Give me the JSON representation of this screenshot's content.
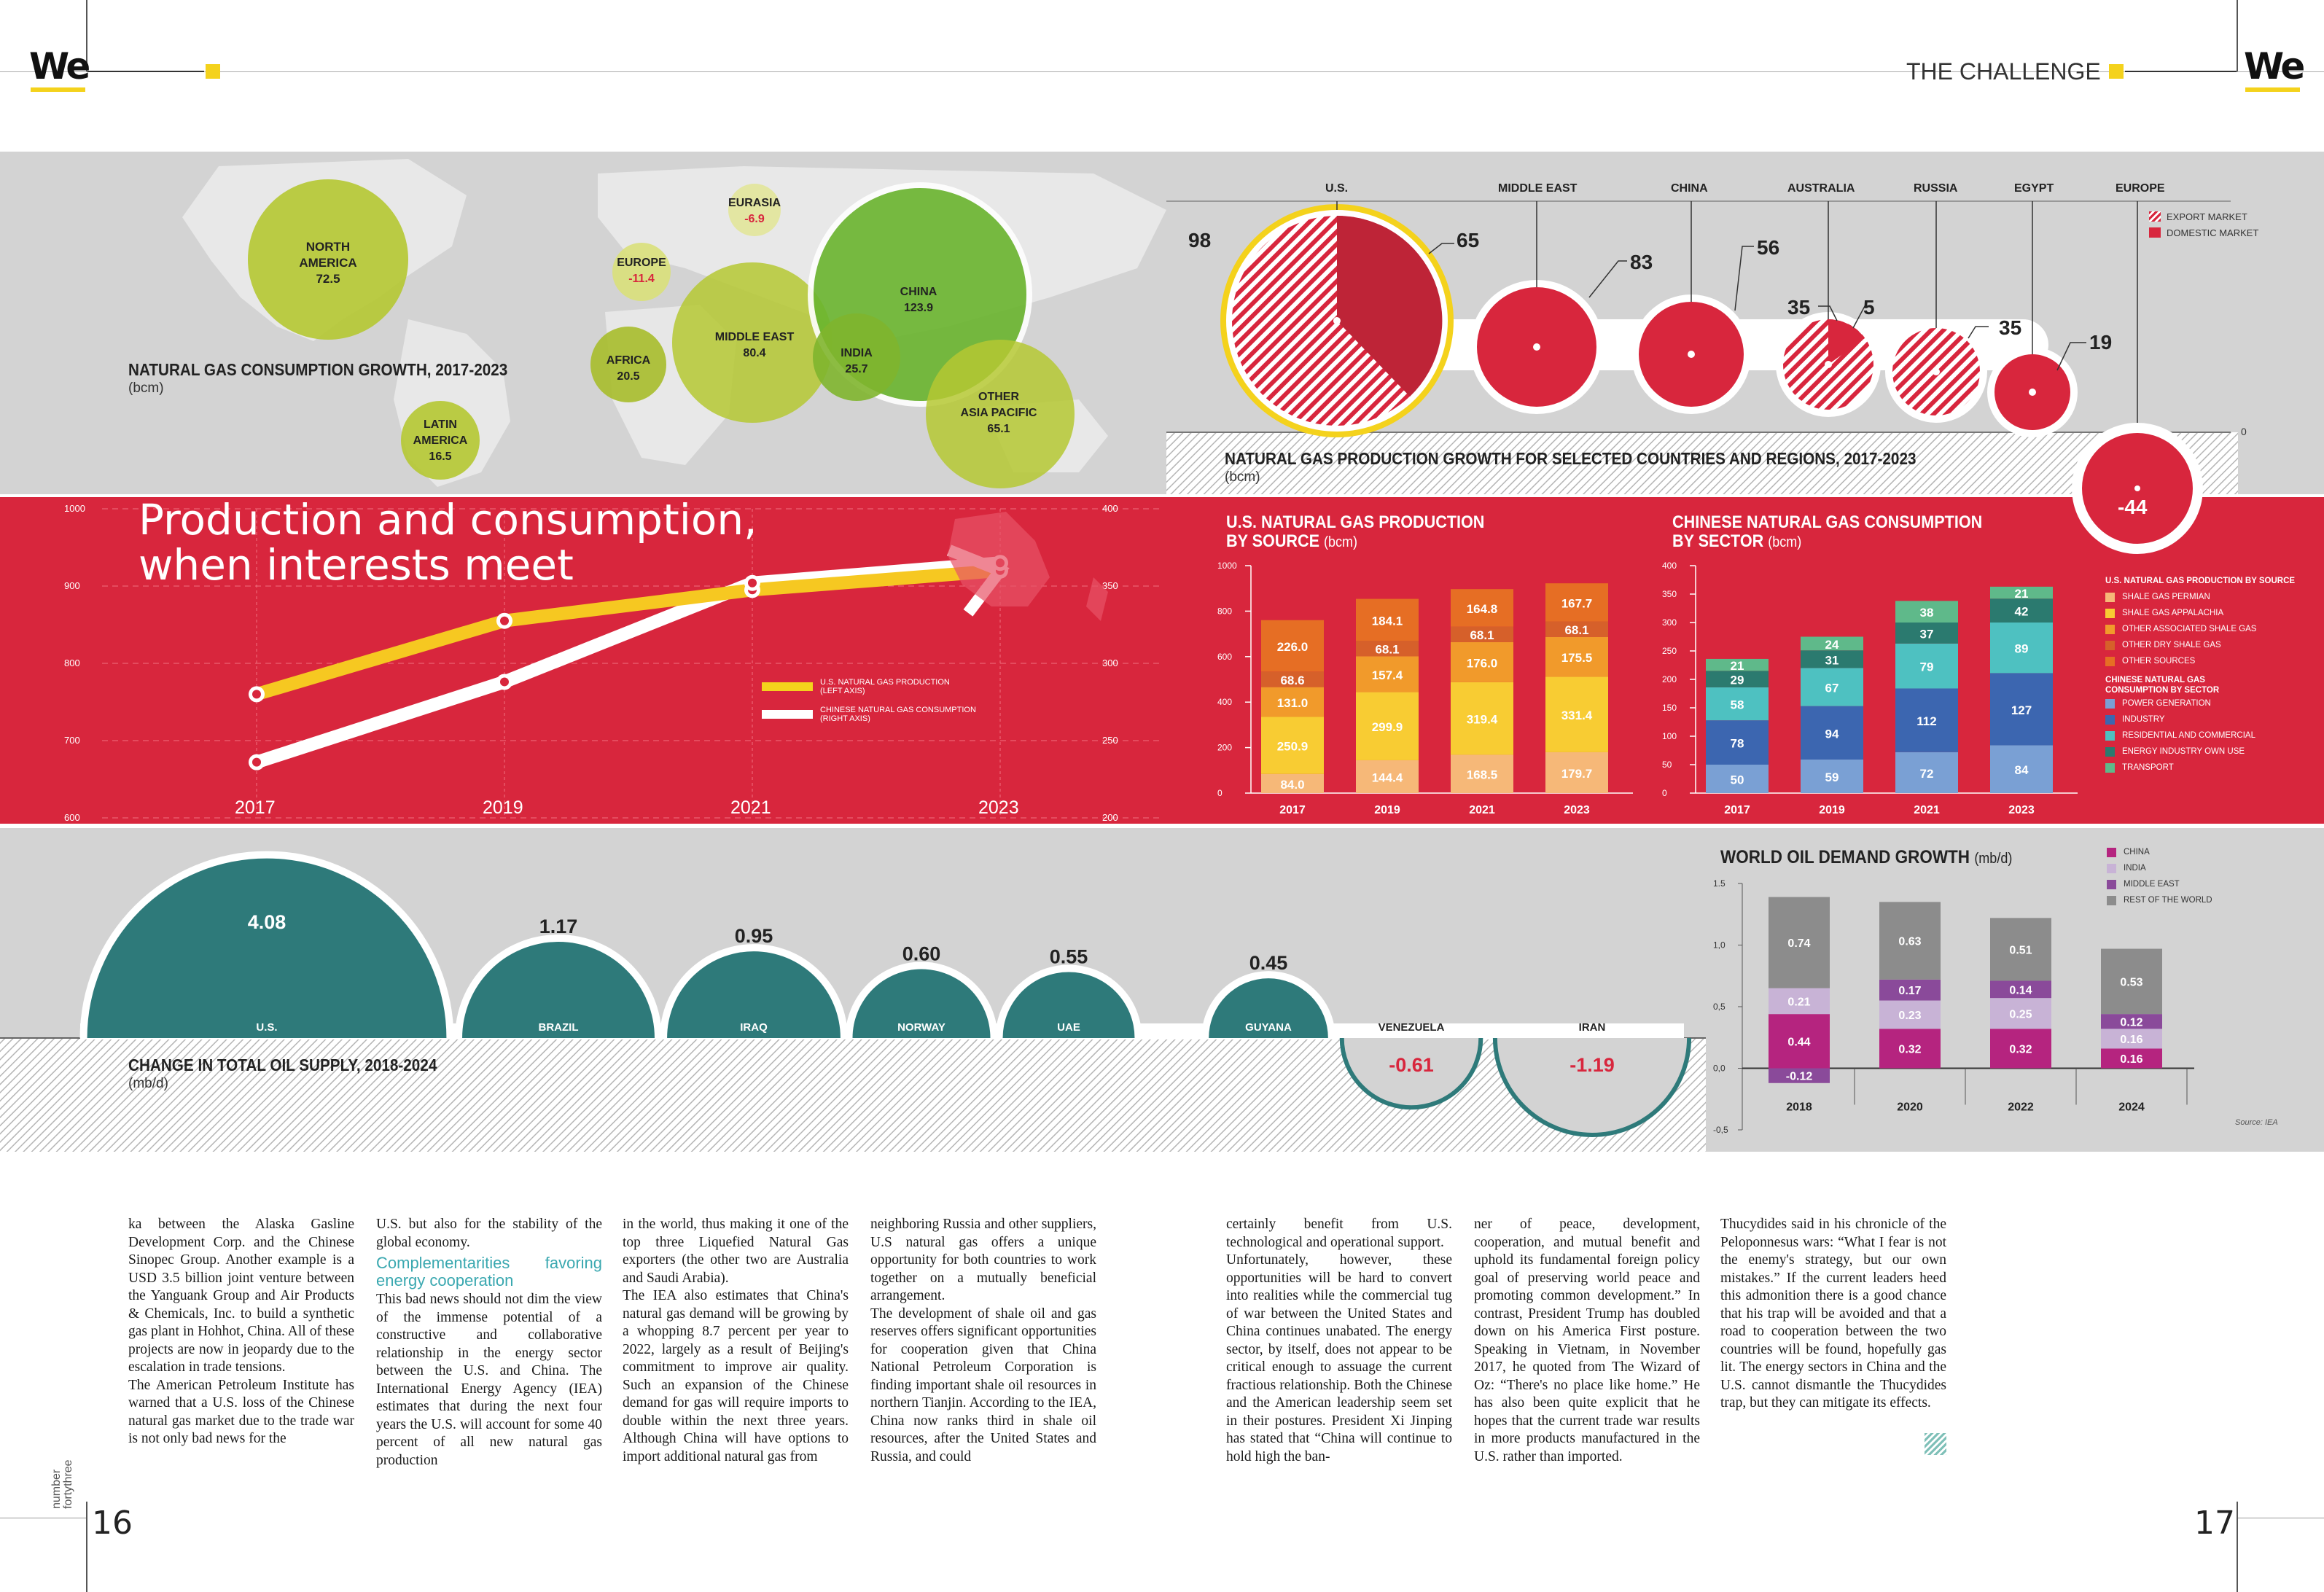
{
  "header": {
    "logo": "We",
    "section": "THE CHALLENGE",
    "page_left": "16",
    "page_right": "17",
    "issue_vertical": "number fortythree"
  },
  "colors": {
    "red": "#d8263d",
    "gray": "#d3d3d3",
    "yellow": "#f4d21c",
    "green": "#b5c832",
    "teal": "#2e7a7a",
    "yellowline": "#f6c821"
  },
  "consumption_map": {
    "title": "NATURAL GAS CONSUMPTION GROWTH, 2017-2023",
    "unit": "(bcm)",
    "bubbles": [
      {
        "name": "NORTH AMERICA",
        "value": "72.5"
      },
      {
        "name": "EUROPE",
        "value": "-11.4"
      },
      {
        "name": "EURASIA",
        "value": "-6.9"
      },
      {
        "name": "AFRICA",
        "value": "20.5"
      },
      {
        "name": "MIDDLE EAST",
        "value": "80.4"
      },
      {
        "name": "INDIA",
        "value": "25.7"
      },
      {
        "name": "CHINA",
        "value": "123.9"
      },
      {
        "name": "OTHER ASIA PACIFIC",
        "value": "65.1"
      },
      {
        "name": "LATIN AMERICA",
        "value": "16.5"
      }
    ]
  },
  "production_growth": {
    "title": "NATURAL GAS PRODUCTION GROWTH FOR SELECTED COUNTRIES AND REGIONS, 2017-2023",
    "unit": "(bcm)",
    "legend": [
      "EXPORT MARKET",
      "DOMESTIC MARKET"
    ],
    "zero_label": "0",
    "countries": [
      {
        "name": "U.S.",
        "export": "98",
        "domestic": "65"
      },
      {
        "name": "MIDDLE EAST",
        "domestic": "83"
      },
      {
        "name": "CHINA",
        "domestic": "56"
      },
      {
        "name": "AUSTRALIA",
        "export": "35",
        "domestic": "5"
      },
      {
        "name": "RUSSIA",
        "export": "35"
      },
      {
        "name": "EGYPT",
        "domestic": "19"
      },
      {
        "name": "EUROPE",
        "domestic": "-44"
      }
    ]
  },
  "line_panel": {
    "title_line1": "Production and consumption,",
    "title_line2": "when interests meet",
    "left_ticks": [
      "1000",
      "900",
      "800",
      "700",
      "600"
    ],
    "right_ticks": [
      "400",
      "350",
      "300",
      "250",
      "200"
    ],
    "years": [
      "2017",
      "2019",
      "2021",
      "2023"
    ],
    "legend": [
      {
        "label": "U.S. NATURAL GAS PRODUCTION",
        "axis": "(LEFT AXIS)"
      },
      {
        "label": "CHINESE NATURAL GAS CONSUMPTION",
        "axis": "(RIGHT AXIS)"
      }
    ]
  },
  "chart_data": [
    {
      "type": "line",
      "title": "Production and consumption, when interests meet",
      "x": [
        "2017",
        "2019",
        "2021",
        "2023"
      ],
      "series": [
        {
          "name": "U.S. NATURAL GAS PRODUCTION (LEFT AXIS)",
          "values": [
            760,
            855,
            895,
            920
          ]
        },
        {
          "name": "CHINESE NATURAL GAS CONSUMPTION (RIGHT AXIS)",
          "values": [
            236,
            288,
            352,
            365
          ]
        }
      ],
      "ylim_left": [
        600,
        1000
      ],
      "ylim_right": [
        200,
        400
      ]
    },
    {
      "type": "bar",
      "title": "U.S. NATURAL GAS PRODUCTION BY SOURCE",
      "unit": "(bcm)",
      "categories": [
        "2017",
        "2019",
        "2021",
        "2023"
      ],
      "ylim": [
        0,
        1000
      ],
      "yticks": [
        "1000",
        "800",
        "600",
        "400",
        "200",
        "0"
      ],
      "series": [
        {
          "name": "SHALE GAS PERMIAN",
          "color": "#f6b878",
          "values": [
            84.0,
            144.4,
            168.5,
            179.7
          ]
        },
        {
          "name": "SHALE GAS APPALACHIA",
          "color": "#f8cc33",
          "values": [
            250.9,
            299.9,
            319.4,
            331.4
          ]
        },
        {
          "name": "OTHER ASSOCIATED SHALE GAS",
          "color": "#f19a2b",
          "values": [
            131.0,
            157.4,
            176.0,
            175.5
          ]
        },
        {
          "name": "OTHER DRY SHALE GAS",
          "color": "#d6602a",
          "values": [
            68.6,
            68.1,
            68.1,
            68.1
          ]
        },
        {
          "name": "OTHER SOURCES",
          "color": "#e66e24",
          "values": [
            226.0,
            184.1,
            164.8,
            167.7
          ]
        }
      ]
    },
    {
      "type": "bar",
      "title": "CHINESE NATURAL GAS CONSUMPTION BY SECTOR",
      "unit": "(bcm)",
      "categories": [
        "2017",
        "2019",
        "2021",
        "2023"
      ],
      "ylim": [
        0,
        400
      ],
      "yticks": [
        "400",
        "350",
        "300",
        "250",
        "200",
        "150",
        "100",
        "50",
        "0"
      ],
      "series": [
        {
          "name": "POWER GENERATION",
          "color": "#7aa0d4",
          "values": [
            50,
            59,
            72,
            84
          ]
        },
        {
          "name": "INDUSTRY",
          "color": "#3c66b0",
          "values": [
            78,
            94,
            112,
            127
          ]
        },
        {
          "name": "RESIDENTIAL AND COMMERCIAL",
          "color": "#4ec1c1",
          "values": [
            58,
            67,
            79,
            89
          ]
        },
        {
          "name": "ENERGY INDUSTRY OWN USE",
          "color": "#2b7a6f",
          "values": [
            29,
            31,
            37,
            42
          ]
        },
        {
          "name": "TRANSPORT",
          "color": "#5fb98a",
          "values": [
            21,
            24,
            38,
            21
          ]
        }
      ]
    },
    {
      "type": "bar",
      "title": "WORLD OIL DEMAND GROWTH",
      "unit": "(mb/d)",
      "categories": [
        "2018",
        "2020",
        "2022",
        "2024"
      ],
      "ylim": [
        -0.5,
        1.5
      ],
      "yticks": [
        "1.5",
        "1,0",
        "0,5",
        "0,0",
        "-0,5"
      ],
      "source": "Source: IEA",
      "series": [
        {
          "name": "CHINA",
          "color": "#b5247f",
          "values": [
            0.44,
            0.32,
            0.32,
            0.16
          ]
        },
        {
          "name": "INDIA",
          "color": "#c8b3d6",
          "values": [
            0.21,
            0.23,
            0.25,
            0.16
          ]
        },
        {
          "name": "MIDDLE EAST",
          "color": "#8a4a9a",
          "values": [
            -0.12,
            0.17,
            0.14,
            0.12
          ]
        },
        {
          "name": "REST OF THE WORLD",
          "color": "#8c8c8c",
          "values": [
            0.74,
            0.63,
            0.51,
            0.53
          ]
        }
      ]
    },
    {
      "type": "bar",
      "title": "CHANGE IN TOTAL OIL SUPPLY, 2018-2024",
      "unit": "(mb/d)",
      "categories": [
        "U.S.",
        "BRAZIL",
        "IRAQ",
        "NORWAY",
        "UAE",
        "GUYANA",
        "VENEZUELA",
        "IRAN"
      ],
      "values": [
        4.08,
        1.17,
        0.95,
        0.6,
        0.55,
        0.45,
        -0.61,
        -1.19
      ]
    }
  ],
  "oil_supply": {
    "title": "CHANGE IN TOTAL OIL SUPPLY, 2018-2024",
    "unit": "(mb/d)",
    "labels": [
      "4.08",
      "1.17",
      "0.95",
      "0.60",
      "0.55",
      "0.45",
      "-0.61",
      "-1.19"
    ]
  },
  "oil_demand": {
    "title": "WORLD OIL DEMAND GROWTH",
    "unit": "(mb/d)",
    "source": "Source: IEA"
  },
  "us_prod": {
    "title1": "U.S. NATURAL GAS PRODUCTION",
    "title2": "BY SOURCE",
    "unit": "(bcm)"
  },
  "cn_cons": {
    "title1": "CHINESE NATURAL GAS CONSUMPTION",
    "title2": "BY SECTOR",
    "unit": "(bcm)"
  },
  "side_legend": {
    "us_head": "U.S. NATURAL GAS PRODUCTION BY SOURCE",
    "cn_head1": "CHINESE NATURAL GAS",
    "cn_head2": "CONSUMPTION BY SECTOR"
  },
  "article": {
    "col1": "ka between the Alaska Gasline Development Corp. and the Chinese Sinopec Group. Another example is a USD 3.5 billion joint venture between the Yanguank Group and Air Products & Chemicals, Inc. to build a synthetic gas plant in Hohhot, China. All of these projects are now in jeopardy due to the escalation in trade tensions.\nThe American Petroleum Institute has warned that a U.S. loss of the Chinese natural gas market due to the trade war is not only bad news for the",
    "col2a": "U.S. but also for the stability of the global economy.",
    "col2_head": "Complementarities favoring energy cooperation",
    "col2b": "This bad news should not dim the view of the immense potential of a constructive and collaborative relationship in the energy sector between the U.S. and China. The International Energy Agency (IEA) estimates that during the next four years the U.S. will account for some 40 percent of all new natural gas production",
    "col3": "in the world, thus making it one of the top three Liquefied Natural Gas exporters (the other two are Australia and Saudi Arabia).\nThe IEA also estimates that China's natural gas demand will be growing by a whopping 8.7 percent per year to 2022, largely as a result of Beijing's commitment to improve air quality. Such an expansion of the Chinese demand for gas will require imports to double within the next three years. Although China will have options to import additional natural gas from",
    "col4": "neighboring Russia and other suppliers, U.S natural gas offers a unique opportunity for both countries to work together on a mutually beneficial arrangement.\nThe development of shale oil and gas reserves offers significant opportunities for cooperation given that China National Petroleum Corporation is finding important shale oil resources in northern Tianjin. According to the IEA, China now ranks third in shale oil resources, after the United States and Russia, and could",
    "col5": "certainly benefit from U.S. technological and operational support.\nUnfortunately, however, these opportunities will be hard to convert into realities while the commercial tug of war between the United States and China continues unabated. The energy sector, by itself, does not appear to be critical enough to assuage the current fractious relationship. Both the Chinese and the American leadership seem set in their postures. President Xi Jinping has stated that “China will continue to hold high the ban-",
    "col6": "ner of peace, development, cooperation, and mutual benefit and uphold its fundamental foreign policy goal of preserving world peace and promoting common development.” In contrast, President Trump has doubled down on his America First posture. Speaking in Vietnam, in November 2017, he quoted from The Wizard of Oz: “There's no place like home.” He has also been quite explicit that he hopes that the current trade war results in more products manufactured in the U.S. rather than imported.",
    "col7": "Thucydides said in his chronicle of the Peloponnesus wars: “What I fear is not the enemy's strategy, but our own mistakes.” If the current leaders heed this admonition there is a good chance that his trap will be avoided and that a road to cooperation between the two countries will be found, hopefully gas lit. The energy sectors in China and the U.S. cannot dismantle the Thucydides trap, but they can mitigate its effects."
  }
}
